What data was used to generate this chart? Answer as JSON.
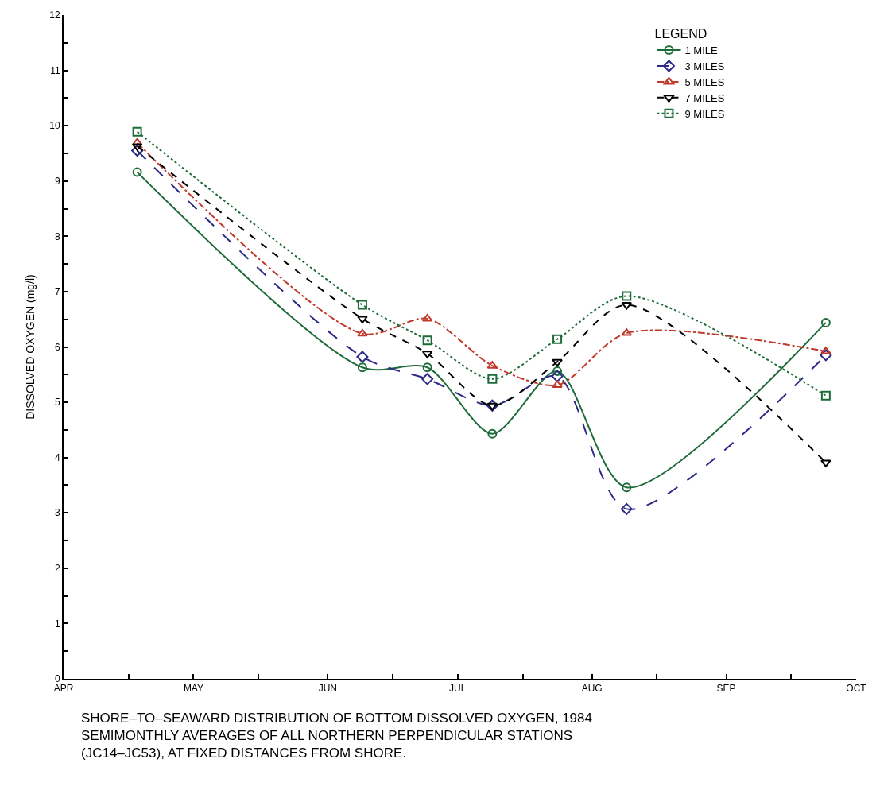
{
  "chart_data": {
    "type": "line",
    "ylabel": "DISSOLVED OXYGEN (mg/l)",
    "legend_title": "LEGEND",
    "legend": "top right",
    "x": [
      "1984-04-18",
      "1984-06-09",
      "1984-06-24",
      "1984-07-09",
      "1984-07-24",
      "1984-08-09",
      "1984-09-24"
    ],
    "xlim": [
      "1984-04-01",
      "1984-10-01"
    ],
    "xticks": [
      {
        "value": "1984-04-01",
        "label": "APR"
      },
      {
        "value": "1984-04-16",
        "label": null
      },
      {
        "value": "1984-05-01",
        "label": "MAY"
      },
      {
        "value": "1984-05-16",
        "label": null
      },
      {
        "value": "1984-06-01",
        "label": "JUN"
      },
      {
        "value": "1984-06-16",
        "label": null
      },
      {
        "value": "1984-07-01",
        "label": "JUL"
      },
      {
        "value": "1984-07-16",
        "label": null
      },
      {
        "value": "1984-08-01",
        "label": "AUG"
      },
      {
        "value": "1984-08-16",
        "label": null
      },
      {
        "value": "1984-09-01",
        "label": "SEP"
      },
      {
        "value": "1984-09-16",
        "label": null
      },
      {
        "value": "1984-10-01",
        "label": "OCT"
      }
    ],
    "ylim": [
      0,
      12
    ],
    "yticks": [
      0,
      {
        "value": 0.5,
        "label": null
      },
      1,
      {
        "value": 1.5,
        "label": null
      },
      2,
      {
        "value": 2.5,
        "label": null
      },
      3,
      {
        "value": 3.5,
        "label": null
      },
      4,
      {
        "value": 4.5,
        "label": null
      },
      5,
      {
        "value": 5.5,
        "label": null
      },
      6,
      {
        "value": 6.5,
        "label": null
      },
      7,
      {
        "value": 7.5,
        "label": null
      },
      8,
      {
        "value": 8.5,
        "label": null
      },
      9,
      {
        "value": 9.5,
        "label": null
      },
      10,
      {
        "value": 10.5,
        "label": null
      },
      11,
      {
        "value": 11.5,
        "label": null
      },
      12
    ],
    "series": [
      {
        "name": "1 MILE",
        "color": "#1e6b3a",
        "marker": "circle",
        "line_style": "solid",
        "values": [
          9.16,
          5.63,
          5.63,
          4.43,
          5.56,
          3.46,
          6.44
        ]
      },
      {
        "name": "3 MILES",
        "color": "#2b2a86",
        "marker": "diamond",
        "line_style": "longdash",
        "values": [
          9.55,
          5.82,
          5.42,
          4.94,
          5.47,
          3.07,
          5.85
        ]
      },
      {
        "name": "5 MILES",
        "color": "#c0392b",
        "marker": "triangle",
        "line_style": "dashdot",
        "values": [
          9.69,
          6.24,
          6.51,
          5.66,
          5.31,
          6.25,
          5.92
        ]
      },
      {
        "name": "7 MILES",
        "color": "#000000",
        "marker": "triangle-down",
        "line_style": "dashed",
        "values": [
          9.63,
          6.51,
          5.88,
          4.94,
          5.73,
          6.76,
          3.91
        ]
      },
      {
        "name": "9 MILES",
        "color": "#1e6b3a",
        "marker": "square",
        "line_style": "dotted",
        "values": [
          9.89,
          6.76,
          6.12,
          5.42,
          6.14,
          6.92,
          5.12
        ]
      }
    ],
    "annotations": [
      "SHORE–TO–SEAWARD DISTRIBUTION OF BOTTOM DISSOLVED OXYGEN, 1984\nSEMIMONTHLY AVERAGES OF ALL NORTHERN PERPENDICULAR STATIONS\n(JC14–JC53), AT FIXED DISTANCES FROM SHORE."
    ]
  }
}
